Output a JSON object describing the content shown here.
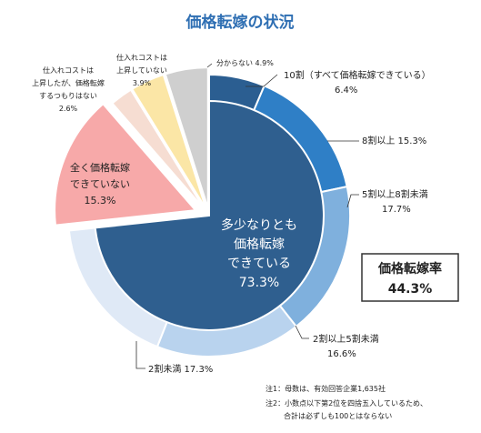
{
  "chart_data": {
    "type": "pie",
    "title": "価格転嫁の状況",
    "inner": {
      "label_lines": [
        "多少なりとも",
        "価格転嫁",
        "できている",
        "73.3%"
      ],
      "value": 73.3,
      "color": "#2f5f8f"
    },
    "slices": [
      {
        "name": "10割（すべて価格転嫁できている）",
        "value": 6.4,
        "label": "10割（すべて価格転嫁できている）",
        "pct": "6.4%",
        "color": "#2b5e91"
      },
      {
        "name": "8割以上",
        "value": 15.3,
        "label": "8割以上 15.3%",
        "pct": "",
        "color": "#2f7fc6"
      },
      {
        "name": "5割以上8割未満",
        "value": 17.7,
        "label": "5割以上8割未満",
        "pct": "17.7%",
        "color": "#7fb0dd"
      },
      {
        "name": "2割以上5割未満",
        "value": 16.6,
        "label": "2割以上5割未満",
        "pct": "16.6%",
        "color": "#b9d3ee"
      },
      {
        "name": "2割未満",
        "value": 17.3,
        "label": "2割未満 17.3%",
        "pct": "",
        "color": "#dfe9f6"
      },
      {
        "name": "全く価格転嫁できていない",
        "value": 15.3,
        "label_lines": [
          "全く価格転嫁",
          "できていない",
          "15.3%"
        ],
        "color": "#f7a9a9"
      },
      {
        "name": "仕入れコストは上昇したが、価格転嫁するつもりはない",
        "value": 2.6,
        "label_lines": [
          "仕入れコストは",
          "上昇したが、価格転嫁",
          "するつもりはない",
          "2.6%"
        ],
        "color": "#f6ddd2"
      },
      {
        "name": "仕入れコストは上昇していない",
        "value": 3.9,
        "label_lines": [
          "仕入れコストは",
          "上昇していない",
          "3.9%"
        ],
        "color": "#fbe6a6"
      },
      {
        "name": "分からない",
        "value": 4.9,
        "label": "分からない 4.9%",
        "color": "#cfcfcf"
      }
    ],
    "rate_box": {
      "title": "価格転嫁率",
      "value": "44.3%"
    },
    "notes": [
      "注1：母数は、有効回答企業1,635社",
      "注2：小数点以下第2位を四捨五入しているため、",
      "合計は必ずしも100とはならない"
    ]
  }
}
